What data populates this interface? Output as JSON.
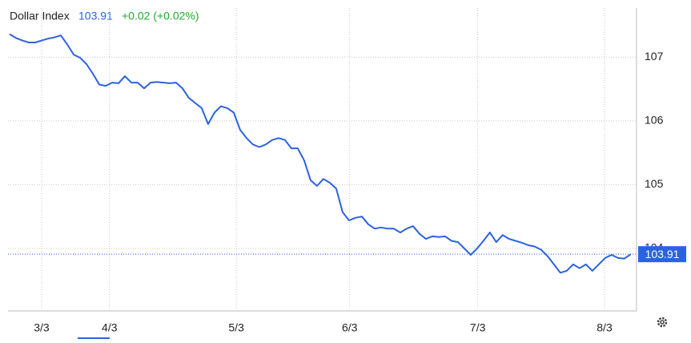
{
  "chart_data": {
    "type": "line",
    "title": "Dollar Index",
    "current_value": 103.91,
    "change_label": "+0.02 (+0.02%)",
    "color": "#2b62e0",
    "values": [
      107.36,
      107.3,
      107.26,
      107.23,
      107.23,
      107.26,
      107.29,
      107.31,
      107.34,
      107.2,
      107.04,
      106.99,
      106.89,
      106.74,
      106.57,
      106.55,
      106.6,
      106.59,
      106.7,
      106.6,
      106.6,
      106.51,
      106.6,
      106.61,
      106.6,
      106.59,
      106.6,
      106.51,
      106.36,
      106.28,
      106.2,
      105.95,
      106.13,
      106.23,
      106.2,
      106.13,
      105.86,
      105.73,
      105.63,
      105.59,
      105.63,
      105.7,
      105.73,
      105.7,
      105.57,
      105.57,
      105.38,
      105.07,
      104.98,
      105.09,
      105.03,
      104.94,
      104.57,
      104.44,
      104.48,
      104.5,
      104.38,
      104.31,
      104.33,
      104.31,
      104.31,
      104.25,
      104.31,
      104.35,
      104.23,
      104.15,
      104.19,
      104.18,
      104.19,
      104.12,
      104.1,
      104.0,
      103.9,
      104.0,
      104.12,
      104.25,
      104.1,
      104.21,
      104.15,
      104.12,
      104.09,
      104.05,
      104.03,
      103.98,
      103.88,
      103.75,
      103.62,
      103.65,
      103.75,
      103.69,
      103.75,
      103.65,
      103.75,
      103.85,
      103.9,
      103.85,
      103.84,
      103.91
    ],
    "xlim": [
      -0.25,
      97.9
    ],
    "xticks": [
      {
        "value": 5,
        "label": "3/3"
      },
      {
        "value": 15.6,
        "label": "4/3"
      },
      {
        "value": 35.4,
        "label": "5/3"
      },
      {
        "value": 53.1,
        "label": "6/3"
      },
      {
        "value": 73.1,
        "label": "7/3"
      },
      {
        "value": 92.9,
        "label": "8/3"
      }
    ],
    "ylim": [
      103.02,
      107.77
    ],
    "yticks": [
      104,
      105,
      106,
      107
    ],
    "grid": true
  }
}
